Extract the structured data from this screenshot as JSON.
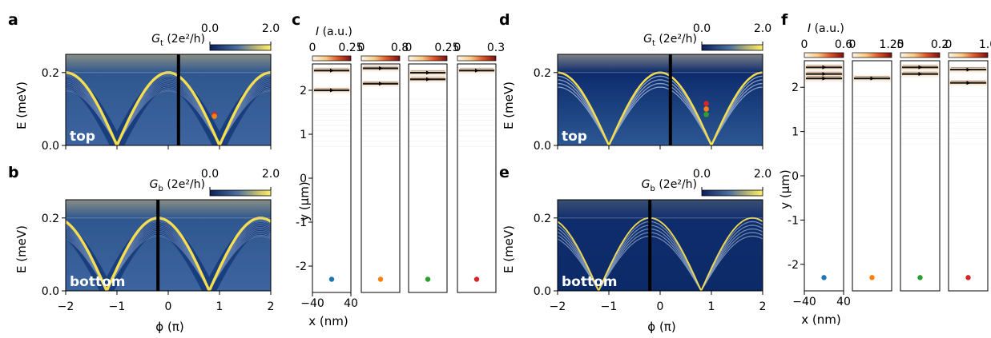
{
  "panel_letters": {
    "a": "a",
    "b": "b",
    "c": "c",
    "d": "d",
    "e": "e",
    "f": "f"
  },
  "labels": {
    "E_axis": "E (meV)",
    "phi_axis": "ϕ (π)",
    "y_axis": "y (μm)",
    "x_axis": "x (nm)",
    "top": "top",
    "bottom": "bottom",
    "Gt_colorbar": "G_t (2e²/h)",
    "Gb_colorbar": "G_b (2e²/h)",
    "I_colorbar": "I (a.u.)"
  },
  "colors": {
    "map_low": "#0a2a6e",
    "map_mid": "#3d62a0",
    "map_high": "#f2e05a",
    "marker_blue": "#1f77b4",
    "marker_orange": "#ff7f0e",
    "marker_green": "#2ca02c",
    "marker_red": "#d62728",
    "current_trace": "#1a1a1a"
  },
  "chart_data": [
    {
      "type": "heatmap",
      "panel": "a",
      "title": "",
      "xlabel": "ϕ (π)",
      "ylabel": "E (meV)",
      "inset_label": "top",
      "xlim": [
        -2,
        2
      ],
      "ylim": [
        0,
        0.25
      ],
      "x_ticks": [
        "−2",
        "−1",
        "0",
        "1",
        "2"
      ],
      "y_ticks": [
        "0.0",
        "0.2"
      ],
      "colorbar": {
        "label": "G_t (2e²/h)",
        "range": [
          0.0,
          2.0
        ],
        "tick_labels": [
          "0.0",
          "2.0"
        ]
      },
      "divider_phi": 0.2,
      "gap_edge_meV": 0.2,
      "dip_phi": [
        -1,
        1
      ],
      "fringes": 14,
      "markers": [
        {
          "phi": 0.9,
          "E": 0.085,
          "color": "red"
        },
        {
          "phi": 0.9,
          "E": 0.08,
          "color": "orange"
        }
      ]
    },
    {
      "type": "heatmap",
      "panel": "b",
      "title": "",
      "xlabel": "ϕ (π)",
      "ylabel": "E (meV)",
      "inset_label": "bottom",
      "xlim": [
        -2,
        2
      ],
      "ylim": [
        0,
        0.25
      ],
      "x_ticks": [
        "−2",
        "−1",
        "0",
        "1",
        "2"
      ],
      "y_ticks": [
        "0.0",
        "0.2"
      ],
      "colorbar": {
        "label": "G_b (2e²/h)",
        "range": [
          0.0,
          2.0
        ],
        "tick_labels": [
          "0.0",
          "2.0"
        ]
      },
      "divider_phi": -0.2,
      "gap_edge_meV": 0.2,
      "dip_phi": [
        -1.2,
        0.8
      ],
      "fringes": 14
    },
    {
      "type": "line",
      "panel": "c",
      "title": "",
      "xlabel": "x (nm)",
      "ylabel": "y (μm)",
      "xlim": [
        -40,
        40
      ],
      "x_ticks": [
        "−40",
        "40"
      ],
      "ylim": [
        -2.6,
        2.6
      ],
      "y_ticks": [
        "2",
        "1",
        "0",
        "-1",
        "-2"
      ],
      "colorbar": {
        "label": "I (a.u.)"
      },
      "series": [
        {
          "marker": "blue",
          "colorbar_range": [
            "0",
            "0.25"
          ],
          "bands_um": [
            2.45,
            2.0
          ]
        },
        {
          "marker": "orange",
          "colorbar_range": [
            "0",
            "0.8"
          ],
          "bands_um": [
            2.5,
            2.15
          ]
        },
        {
          "marker": "green",
          "colorbar_range": [
            "0",
            "0.25"
          ],
          "bands_um": [
            2.4,
            2.25
          ]
        },
        {
          "marker": "red",
          "colorbar_range": [
            "0",
            "0.3"
          ],
          "bands_um": [
            2.45
          ]
        }
      ]
    },
    {
      "type": "heatmap",
      "panel": "d",
      "title": "",
      "xlabel": "ϕ (π)",
      "ylabel": "E (meV)",
      "inset_label": "top",
      "xlim": [
        -2,
        2
      ],
      "ylim": [
        0,
        0.25
      ],
      "x_ticks": [
        "−2",
        "−1",
        "0",
        "1",
        "2"
      ],
      "y_ticks": [
        "0.0",
        "0.2"
      ],
      "colorbar": {
        "label": "G_t (2e²/h)",
        "range": [
          0.0,
          2.0
        ],
        "tick_labels": [
          "0.0",
          "2.0"
        ]
      },
      "divider_phi": 0.2,
      "gap_edge_meV": 0.2,
      "dip_phi": [
        -1,
        1
      ],
      "fringes": 4,
      "markers": [
        {
          "phi": 0.9,
          "E": 0.115,
          "color": "red"
        },
        {
          "phi": 0.9,
          "E": 0.1,
          "color": "orange"
        },
        {
          "phi": 0.9,
          "E": 0.085,
          "color": "green"
        }
      ]
    },
    {
      "type": "heatmap",
      "panel": "e",
      "title": "",
      "xlabel": "ϕ (π)",
      "ylabel": "E (meV)",
      "inset_label": "bottom",
      "xlim": [
        -2,
        2
      ],
      "ylim": [
        0,
        0.25
      ],
      "x_ticks": [
        "−2",
        "−1",
        "0",
        "1",
        "2"
      ],
      "y_ticks": [
        "0.0",
        "0.2"
      ],
      "colorbar": {
        "label": "G_b (2e²/h)",
        "range": [
          0.0,
          2.0
        ],
        "tick_labels": [
          "0.0",
          "2.0"
        ]
      },
      "divider_phi": -0.2,
      "gap_edge_meV": 0.2,
      "dip_phi": [
        -1.2,
        0.8
      ],
      "fringes": 5
    },
    {
      "type": "line",
      "panel": "f",
      "title": "",
      "xlabel": "x (nm)",
      "ylabel": "y (μm)",
      "xlim": [
        -40,
        40
      ],
      "x_ticks": [
        "−40",
        "40"
      ],
      "ylim": [
        -2.6,
        2.6
      ],
      "y_ticks": [
        "2",
        "1",
        "0",
        "-1",
        "-2"
      ],
      "colorbar": {
        "label": "I (a.u.)"
      },
      "series": [
        {
          "marker": "blue",
          "colorbar_range": [
            "0",
            "0.6"
          ],
          "bands_um": [
            2.45,
            2.3,
            2.2
          ]
        },
        {
          "marker": "orange",
          "colorbar_range": [
            "0",
            "1.25"
          ],
          "bands_um": [
            2.2
          ]
        },
        {
          "marker": "green",
          "colorbar_range": [
            "0",
            "0.2"
          ],
          "bands_um": [
            2.45,
            2.3
          ]
        },
        {
          "marker": "red",
          "colorbar_range": [
            "0",
            "1.0"
          ],
          "bands_um": [
            2.4,
            2.1
          ]
        }
      ]
    }
  ]
}
